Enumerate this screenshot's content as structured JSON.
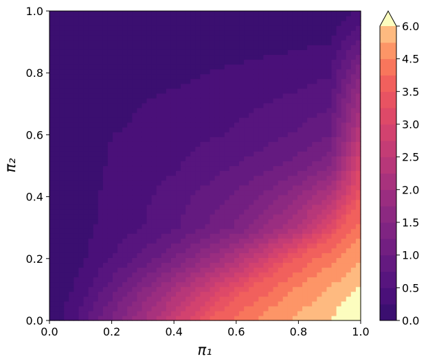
{
  "chart_data": {
    "type": "contourf",
    "xlabel": "π₁",
    "ylabel": "π₂",
    "xlim": [
      0,
      1
    ],
    "ylim": [
      0,
      1
    ],
    "xticks": [
      {
        "value": 0,
        "label": "0.0"
      },
      {
        "value": 0.2,
        "label": "0.2"
      },
      {
        "value": 0.4,
        "label": "0.4"
      },
      {
        "value": 0.6,
        "label": "0.6"
      },
      {
        "value": 0.8,
        "label": "0.8"
      },
      {
        "value": 1,
        "label": "1.0"
      }
    ],
    "yticks": [
      {
        "value": 0,
        "label": "0.0"
      },
      {
        "value": 0.2,
        "label": "0.2"
      },
      {
        "value": 0.4,
        "label": "0.4"
      },
      {
        "value": 0.6,
        "label": "0.6"
      },
      {
        "value": 0.8,
        "label": "0.8"
      },
      {
        "value": 1,
        "label": "1.0"
      }
    ],
    "x": [
      0,
      0.1,
      0.2,
      0.3,
      0.4,
      0.5,
      0.6,
      0.7,
      0.8,
      0.9,
      1
    ],
    "y": [
      0,
      0.1,
      0.2,
      0.3,
      0.4,
      0.5,
      0.6,
      0.7,
      0.8,
      0.9,
      1
    ],
    "z": [
      [
        0,
        0.6,
        1.3,
        2.0,
        2.7,
        3.4,
        4.1,
        4.8,
        5.5,
        6.0,
        7.0
      ],
      [
        0,
        0.35,
        0.9,
        1.5,
        2.1,
        2.7,
        3.3,
        3.9,
        4.6,
        5.3,
        6.2
      ],
      [
        0,
        0.2,
        0.5,
        0.82,
        1.25,
        1.75,
        2.25,
        2.9,
        3.6,
        4.3,
        5.2
      ],
      [
        0,
        0.14,
        0.38,
        0.5,
        0.7,
        1.0,
        1.3,
        1.8,
        2.3,
        3.1,
        4.2
      ],
      [
        0,
        0.1,
        0.35,
        0.45,
        0.62,
        0.83,
        1.05,
        1.32,
        1.75,
        2.3,
        3.5
      ],
      [
        0,
        0.07,
        0.3,
        0.38,
        0.46,
        0.62,
        0.76,
        0.93,
        1.12,
        1.45,
        3.0
      ],
      [
        0,
        0.04,
        0.25,
        0.32,
        0.4,
        0.46,
        0.53,
        0.65,
        0.8,
        1.0,
        2.5
      ],
      [
        0,
        0.02,
        0.12,
        0.26,
        0.33,
        0.38,
        0.44,
        0.5,
        0.58,
        0.7,
        2.0
      ],
      [
        0,
        0.01,
        0.05,
        0.1,
        0.17,
        0.25,
        0.3,
        0.35,
        0.4,
        0.47,
        1.5
      ],
      [
        0,
        0,
        0.02,
        0.05,
        0.08,
        0.1,
        0.13,
        0.16,
        0.2,
        0.24,
        0.8
      ],
      [
        0,
        0,
        0,
        0,
        0,
        0,
        0,
        0,
        0,
        0.05,
        0.3
      ]
    ],
    "levels": [
      0,
      0.25,
      0.5,
      0.75,
      1,
      1.25,
      1.5,
      1.75,
      2,
      2.25,
      2.5,
      2.75,
      3,
      3.25,
      3.5,
      4,
      4.5,
      5.25,
      6
    ],
    "colors": [
      "#3b0f70",
      "#4a1079",
      "#57157e",
      "#641a80",
      "#721f81",
      "#7f2482",
      "#8c2981",
      "#9a2d80",
      "#a8327d",
      "#b73779",
      "#c43c75",
      "#d2426f",
      "#de4968",
      "#e85362",
      "#f1605d",
      "#f8765c",
      "#fd9567",
      "#feba80"
    ],
    "extend_color": "#fcfdbf",
    "cticks": [
      {
        "value": 0,
        "label": "0.0"
      },
      {
        "value": 0.5,
        "label": "0.5"
      },
      {
        "value": 1,
        "label": "1.0"
      },
      {
        "value": 1.5,
        "label": "1.5"
      },
      {
        "value": 2,
        "label": "2.0"
      },
      {
        "value": 2.5,
        "label": "2.5"
      },
      {
        "value": 3,
        "label": "3.0"
      },
      {
        "value": 3.5,
        "label": "3.5"
      },
      {
        "value": 4.5,
        "label": "4.5"
      },
      {
        "value": 6,
        "label": "6.0"
      }
    ]
  }
}
